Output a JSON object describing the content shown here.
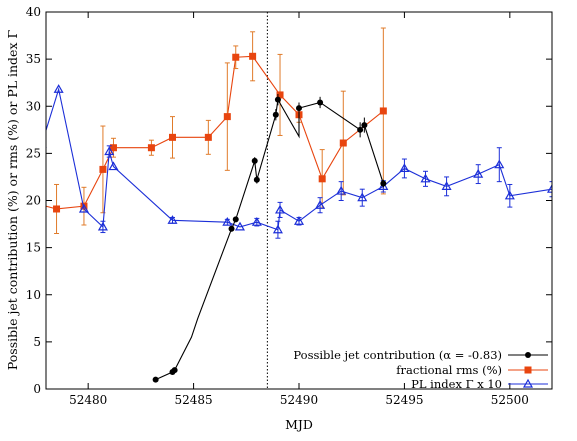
{
  "chart_data": {
    "type": "line",
    "xlabel": "MJD",
    "ylabel": "Possible jet contribution (%) or rms (%) or PL index Γ",
    "xlim": [
      52478,
      52502
    ],
    "ylim": [
      0,
      40
    ],
    "xticks": [
      52480,
      52485,
      52490,
      52495,
      52500
    ],
    "yticks": [
      0,
      5,
      10,
      15,
      20,
      25,
      30,
      35,
      40
    ],
    "grid": false,
    "legend_position": "bottom-right",
    "vline_x": 52488.5,
    "series": [
      {
        "name": "Possible jet contribution (α = -0.83)",
        "color": "#000000",
        "marker": "circle",
        "points": [
          {
            "x": 52483.2,
            "y": 1.0
          },
          {
            "x": 52484.0,
            "y": 1.8
          },
          {
            "x": 52484.1,
            "y": 2.0
          },
          {
            "x": 52484.9,
            "y": 5.5
          },
          {
            "x": 52485.2,
            "y": 7.5
          },
          {
            "x": 52486.8,
            "y": 17.0
          },
          {
            "x": 52487.0,
            "y": 18.0
          },
          {
            "x": 52487.9,
            "y": 24.2
          },
          {
            "x": 52488.0,
            "y": 22.2
          },
          {
            "x": 52488.9,
            "y": 29.1
          },
          {
            "x": 52489.0,
            "y": 30.7
          },
          {
            "x": 52490.0,
            "y": 26.8
          },
          {
            "x": 52490.0,
            "y": 29.8
          },
          {
            "x": 52491.0,
            "y": 30.4
          },
          {
            "x": 52492.9,
            "y": 27.5
          },
          {
            "x": 52493.1,
            "y": 28.0
          },
          {
            "x": 52494.0,
            "y": 21.8
          }
        ],
        "markers": [
          [
            52483.2,
            1.0
          ],
          [
            52484.0,
            1.8
          ],
          [
            52484.1,
            2.0
          ],
          [
            52486.8,
            17.0
          ],
          [
            52487.0,
            18.0
          ],
          [
            52487.9,
            24.2
          ],
          [
            52488.0,
            22.2
          ],
          [
            52488.9,
            29.1
          ],
          [
            52489.0,
            30.7
          ],
          [
            52490.0,
            29.8
          ],
          [
            52491.0,
            30.4
          ],
          [
            52492.9,
            27.5
          ],
          [
            52493.1,
            28.0
          ],
          [
            52494.0,
            21.8
          ]
        ],
        "errors": [
          0.2,
          0.2,
          0.2,
          0.3,
          0.3,
          0.4,
          0.4,
          0.6,
          0.6,
          0.6,
          0.6,
          0.8,
          0.8,
          0.4
        ]
      },
      {
        "name": "fractional rms (%)",
        "color": "#e8450f",
        "errcolor": "#e07b2a",
        "marker": "square",
        "points": [
          {
            "x": 52477.5,
            "y": 19.7,
            "err": 0
          },
          {
            "x": 52478.5,
            "y": 19.1,
            "err": 2.6
          },
          {
            "x": 52479.8,
            "y": 19.4,
            "err": 2.0
          },
          {
            "x": 52480.7,
            "y": 23.3,
            "err": 4.6
          },
          {
            "x": 52481.2,
            "y": 25.6,
            "err": 1.0
          },
          {
            "x": 52483.0,
            "y": 25.6,
            "err": 0.8
          },
          {
            "x": 52484.0,
            "y": 26.7,
            "err": 2.2
          },
          {
            "x": 52485.7,
            "y": 26.7,
            "err": 1.8
          },
          {
            "x": 52486.6,
            "y": 28.9,
            "err": 5.7
          },
          {
            "x": 52487.0,
            "y": 35.2,
            "err": 1.2
          },
          {
            "x": 52487.8,
            "y": 35.3,
            "err": 2.6
          },
          {
            "x": 52489.1,
            "y": 31.2,
            "err": 4.3
          },
          {
            "x": 52490.0,
            "y": 29.1,
            "err": 0.8
          },
          {
            "x": 52491.1,
            "y": 22.3,
            "err": 3.1
          },
          {
            "x": 52492.1,
            "y": 26.1,
            "err": 5.5
          },
          {
            "x": 52494.0,
            "y": 29.5,
            "err": 8.8
          }
        ]
      },
      {
        "name": "PL index Γ x 10",
        "color": "#1c2fd8",
        "marker": "triangle",
        "points": [
          {
            "x": 52477.8,
            "y": 26.0,
            "err": 0
          },
          {
            "x": 52478.6,
            "y": 31.8,
            "err": 0
          },
          {
            "x": 52479.8,
            "y": 19.1,
            "err": 0
          },
          {
            "x": 52480.7,
            "y": 17.2,
            "err": 0.6
          },
          {
            "x": 52481.0,
            "y": 25.2,
            "err": 0.6
          },
          {
            "x": 52481.2,
            "y": 23.6,
            "err": 0
          },
          {
            "x": 52484.0,
            "y": 17.9,
            "err": 0.3
          },
          {
            "x": 52486.6,
            "y": 17.7,
            "err": 0.3
          },
          {
            "x": 52487.2,
            "y": 17.2,
            "err": 0
          },
          {
            "x": 52488.0,
            "y": 17.7,
            "err": 0.4
          },
          {
            "x": 52489.0,
            "y": 16.9,
            "err": 0.9
          },
          {
            "x": 52489.1,
            "y": 19.0,
            "err": 0.8
          },
          {
            "x": 52490.0,
            "y": 17.8,
            "err": 0.4
          },
          {
            "x": 52491.0,
            "y": 19.5,
            "err": 0.8
          },
          {
            "x": 52492.0,
            "y": 21.0,
            "err": 1.0
          },
          {
            "x": 52493.0,
            "y": 20.3,
            "err": 0.9
          },
          {
            "x": 52494.0,
            "y": 21.5,
            "err": 0.6
          },
          {
            "x": 52495.0,
            "y": 23.4,
            "err": 1.0
          },
          {
            "x": 52496.0,
            "y": 22.3,
            "err": 0.8
          },
          {
            "x": 52497.0,
            "y": 21.5,
            "err": 1.0
          },
          {
            "x": 52498.5,
            "y": 22.8,
            "err": 1.0
          },
          {
            "x": 52499.5,
            "y": 23.8,
            "err": 1.8
          },
          {
            "x": 52500.0,
            "y": 20.5,
            "err": 1.2
          },
          {
            "x": 52502.0,
            "y": 21.2,
            "err": 0.8
          }
        ]
      }
    ]
  }
}
